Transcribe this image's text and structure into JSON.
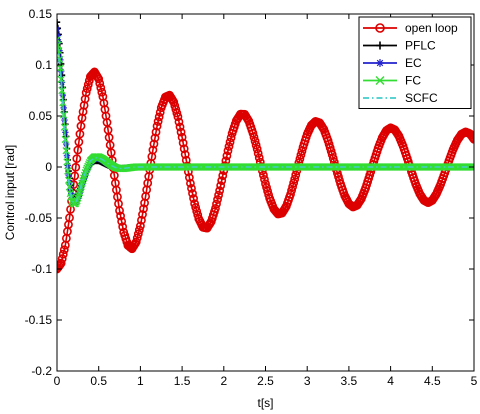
{
  "chart_data": {
    "type": "line",
    "title": "",
    "xlabel": "t[s]",
    "ylabel": "Control input [rad]",
    "xlim": [
      0,
      5
    ],
    "ylim": [
      -0.2,
      0.15
    ],
    "x_ticks": [
      0,
      0.5,
      1,
      1.5,
      2,
      2.5,
      3,
      3.5,
      4,
      4.5,
      5
    ],
    "x_tick_labels": [
      "0",
      "0.5",
      "1",
      "1.5",
      "2",
      "2.5",
      "3",
      "3.5",
      "4",
      "4.5",
      "5"
    ],
    "y_ticks": [
      -0.2,
      -0.15,
      -0.1,
      -0.05,
      0,
      0.05,
      0.1,
      0.15
    ],
    "y_tick_labels": [
      "-0.2",
      "-0.15",
      "-0.1",
      "-0.05",
      "0",
      "0.05",
      "0.1",
      "0.15"
    ],
    "grid": false,
    "legend_position": "top-right",
    "series": [
      {
        "name": "open loop",
        "color": "#dd0000",
        "marker": "circle",
        "x": [
          0,
          0.05,
          0.1,
          0.15,
          0.2,
          0.25,
          0.3,
          0.35,
          0.4,
          0.45,
          0.5,
          0.55,
          0.6,
          0.65,
          0.7,
          0.75,
          0.8,
          0.85,
          0.9,
          0.95,
          1.0,
          1.05,
          1.1,
          1.15,
          1.2,
          1.25,
          1.3,
          1.35,
          1.4,
          1.45,
          1.5,
          1.55,
          1.6,
          1.65,
          1.7,
          1.75,
          1.8,
          1.85,
          1.9,
          1.95,
          2.0,
          2.05,
          2.1,
          2.15,
          2.2,
          2.25,
          2.3,
          2.35,
          2.4,
          2.45,
          2.5,
          2.55,
          2.6,
          2.65,
          2.7,
          2.75,
          2.8,
          2.85,
          2.9,
          2.95,
          3.0,
          3.05,
          3.1,
          3.15,
          3.2,
          3.25,
          3.3,
          3.35,
          3.4,
          3.45,
          3.5,
          3.55,
          3.6,
          3.65,
          3.7,
          3.75,
          3.8,
          3.85,
          3.9,
          3.95,
          4.0,
          4.05,
          4.1,
          4.15,
          4.2,
          4.25,
          4.3,
          4.35,
          4.4,
          4.45,
          4.5,
          4.55,
          4.6,
          4.65,
          4.7,
          4.75,
          4.8,
          4.85,
          4.9,
          4.95,
          5.0
        ],
        "y": [
          -0.1,
          -0.0943,
          -0.0767,
          -0.0497,
          -0.0172,
          0.0167,
          0.048,
          0.0729,
          0.0886,
          0.0932,
          0.0863,
          0.069,
          0.0437,
          0.0141,
          -0.0158,
          -0.0428,
          -0.0639,
          -0.0768,
          -0.0801,
          -0.0735,
          -0.0578,
          -0.0353,
          -0.0093,
          0.0167,
          0.0401,
          0.0581,
          0.0686,
          0.0704,
          0.0636,
          0.0493,
          0.0292,
          0.0066,
          -0.016,
          -0.0359,
          -0.0508,
          -0.0591,
          -0.0599,
          -0.0534,
          -0.0406,
          -0.0232,
          -0.0036,
          0.0159,
          0.0329,
          0.0453,
          0.0518,
          0.0517,
          0.045,
          0.0331,
          0.0176,
          0.0005,
          -0.0164,
          -0.0309,
          -0.0412,
          -0.0461,
          -0.0451,
          -0.0384,
          -0.0268,
          -0.0119,
          0.0042,
          0.0194,
          0.0321,
          0.0409,
          0.0447,
          0.0433,
          0.0368,
          0.0259,
          0.0121,
          -0.0026,
          -0.0166,
          -0.0282,
          -0.0361,
          -0.0392,
          -0.0374,
          -0.031,
          -0.0207,
          -0.0079,
          0.0056,
          0.0183,
          0.0288,
          0.0358,
          0.0384,
          0.0365,
          0.0303,
          0.0205,
          0.0083,
          -0.0045,
          -0.0165,
          -0.0263,
          -0.0327,
          -0.0349,
          -0.0327,
          -0.0264,
          -0.017,
          -0.0057,
          0.0062,
          0.0172,
          0.0262,
          0.0322,
          0.0344,
          0.0327,
          0.0272
        ]
      },
      {
        "name": "PFLC",
        "color": "#000000",
        "marker": "plus",
        "x": [
          0,
          0.02,
          0.04,
          0.06,
          0.08,
          0.1,
          0.12,
          0.14,
          0.16,
          0.18,
          0.2,
          0.22,
          0.24,
          0.26,
          0.28,
          0.3,
          0.35,
          0.4,
          0.45,
          0.5,
          0.55,
          0.6,
          0.65,
          0.7,
          0.75,
          0.8,
          0.85,
          0.9,
          0.95,
          1.0,
          1.1,
          1.2,
          1.5,
          2.0,
          2.5,
          3.0,
          3.5,
          4.0,
          4.5,
          5.0
        ],
        "y": [
          0.142,
          0.13,
          0.112,
          0.09,
          0.066,
          0.042,
          0.018,
          -0.004,
          -0.018,
          -0.027,
          -0.031,
          -0.032,
          -0.03,
          -0.026,
          -0.021,
          -0.016,
          -0.005,
          0.003,
          0.006,
          0.006,
          0.004,
          0.002,
          0.0005,
          -0.0008,
          -0.0012,
          -0.001,
          -0.0006,
          -0.0002,
          0.0,
          0.0,
          0.0,
          0.0,
          0.0,
          0.0,
          0.0,
          0.0,
          0.0,
          0.0,
          0.0,
          0.0
        ]
      },
      {
        "name": "EC",
        "color": "#2222cc",
        "marker": "star",
        "x": [
          0,
          0.02,
          0.04,
          0.06,
          0.08,
          0.1,
          0.12,
          0.14,
          0.16,
          0.18,
          0.2,
          0.22,
          0.24,
          0.26,
          0.28,
          0.3,
          0.35,
          0.4,
          0.45,
          0.5,
          0.55,
          0.6,
          0.65,
          0.7,
          0.75,
          0.8,
          0.85,
          0.9,
          0.95,
          1.0,
          1.1,
          1.2,
          1.5,
          2.0,
          2.5,
          3.0,
          3.5,
          4.0,
          4.5,
          5.0
        ],
        "y": [
          0.135,
          0.123,
          0.105,
          0.083,
          0.058,
          0.034,
          0.011,
          -0.008,
          -0.022,
          -0.03,
          -0.034,
          -0.035,
          -0.033,
          -0.029,
          -0.023,
          -0.017,
          -0.005,
          0.004,
          0.008,
          0.008,
          0.006,
          0.003,
          0.001,
          -0.0008,
          -0.0014,
          -0.0012,
          -0.0007,
          -0.0002,
          0.0,
          0.0,
          0.0,
          0.0,
          0.0,
          0.0,
          0.0,
          0.0,
          0.0,
          0.0,
          0.0,
          0.0
        ]
      },
      {
        "name": "FC",
        "color": "#33dd33",
        "marker": "x",
        "x": [
          0,
          0.02,
          0.04,
          0.06,
          0.08,
          0.1,
          0.12,
          0.14,
          0.16,
          0.18,
          0.2,
          0.22,
          0.24,
          0.26,
          0.28,
          0.3,
          0.35,
          0.4,
          0.45,
          0.5,
          0.55,
          0.6,
          0.65,
          0.7,
          0.75,
          0.8,
          0.85,
          0.9,
          0.95,
          1.0,
          1.1,
          1.2,
          1.5,
          2.0,
          2.5,
          3.0,
          3.5,
          4.0,
          4.5,
          5.0
        ],
        "y": [
          0.125,
          0.114,
          0.097,
          0.075,
          0.051,
          0.027,
          0.005,
          -0.013,
          -0.026,
          -0.033,
          -0.036,
          -0.036,
          -0.033,
          -0.028,
          -0.022,
          -0.016,
          -0.003,
          0.006,
          0.01,
          0.01,
          0.008,
          0.005,
          0.002,
          -0.0005,
          -0.0015,
          -0.0015,
          -0.001,
          -0.0004,
          0.0,
          0.0,
          0.0,
          0.0,
          0.0,
          0.0,
          0.0,
          0.0,
          0.0,
          0.0,
          0.0,
          0.0
        ]
      },
      {
        "name": "SCFC",
        "color": "#44cccc",
        "marker": "none",
        "dash": "dashdot",
        "x": [
          0,
          0.02,
          0.04,
          0.06,
          0.08,
          0.1,
          0.12,
          0.14,
          0.16,
          0.18,
          0.2,
          0.22,
          0.24,
          0.26,
          0.28,
          0.3,
          0.35,
          0.4,
          0.45,
          0.5,
          0.55,
          0.6,
          0.65,
          0.7,
          0.75,
          0.8,
          0.85,
          0.9,
          0.95,
          1.0,
          1.1,
          1.2,
          1.5,
          2.0,
          2.5,
          3.0,
          3.5,
          4.0,
          4.5,
          5.0
        ],
        "y": [
          0.12,
          0.109,
          0.092,
          0.07,
          0.047,
          0.024,
          0.003,
          -0.014,
          -0.026,
          -0.032,
          -0.035,
          -0.035,
          -0.032,
          -0.027,
          -0.021,
          -0.015,
          -0.003,
          0.006,
          0.009,
          0.009,
          0.007,
          0.004,
          0.0015,
          -0.0006,
          -0.0014,
          -0.0013,
          -0.0008,
          -0.0003,
          0.0,
          0.0,
          0.0,
          0.0,
          0.0,
          0.0,
          0.0,
          0.0,
          0.0,
          0.0,
          0.0,
          0.0
        ]
      }
    ]
  }
}
